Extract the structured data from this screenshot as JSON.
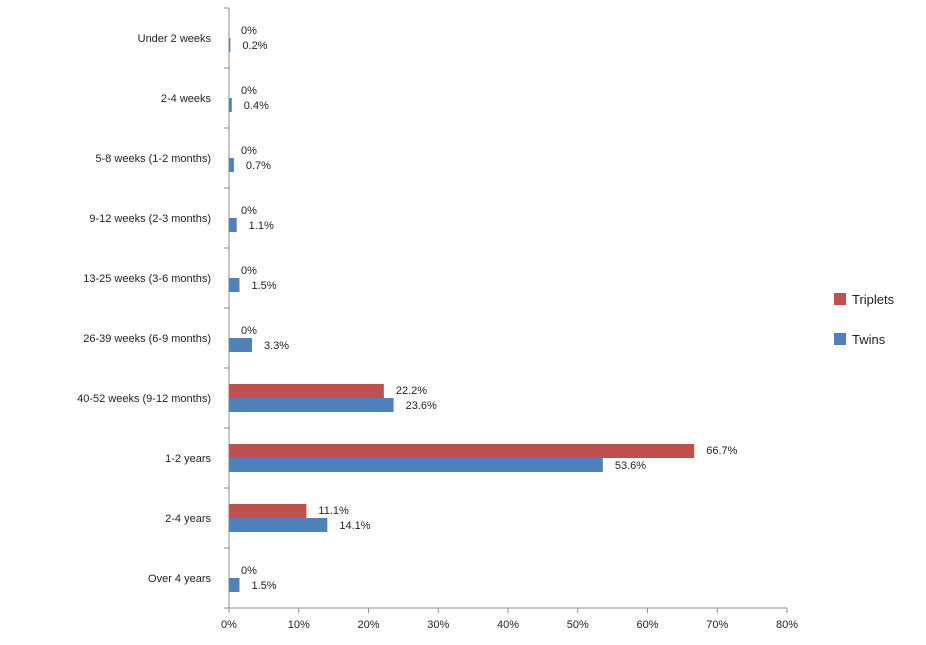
{
  "chart_data": {
    "type": "bar",
    "orientation": "horizontal",
    "categories": [
      "Under 2 weeks",
      "2-4 weeks",
      "5-8 weeks (1-2 months)",
      "9-12 weeks (2-3 months)",
      "13-25 weeks (3-6 months)",
      "26-39 weeks (6-9 months)",
      "40-52 weeks (9-12 months)",
      "1-2 years",
      "2-4 years",
      "Over 4 years"
    ],
    "series": [
      {
        "name": "Triplets",
        "color": "#c0504d",
        "values": [
          0,
          0,
          0,
          0,
          0,
          0,
          22.2,
          66.7,
          11.1,
          0
        ],
        "labels": [
          "0%",
          "0%",
          "0%",
          "0%",
          "0%",
          "0%",
          "22.2%",
          "66.7%",
          "11.1%",
          "0%"
        ]
      },
      {
        "name": "Twins",
        "color": "#4f81bd",
        "values": [
          0.2,
          0.4,
          0.7,
          1.1,
          1.5,
          3.3,
          23.6,
          53.6,
          14.1,
          1.5
        ],
        "labels": [
          "0.2%",
          "0.4%",
          "0.7%",
          "1.1%",
          "1.5%",
          "3.3%",
          "23.6%",
          "53.6%",
          "14.1%",
          "1.5%"
        ]
      }
    ],
    "xlim": [
      0,
      80
    ],
    "x_ticks": [
      "0%",
      "10%",
      "20%",
      "30%",
      "40%",
      "50%",
      "60%",
      "70%",
      "80%"
    ],
    "grid": false,
    "legend": {
      "position": "right",
      "entries": [
        "Triplets",
        "Twins"
      ]
    }
  }
}
